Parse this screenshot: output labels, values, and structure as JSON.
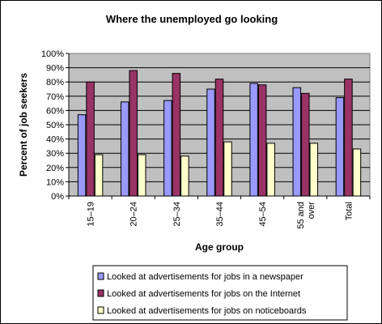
{
  "chart_data": {
    "type": "bar",
    "title": "Where the unemployed go looking",
    "xlabel": "Age group",
    "ylabel": "Percent of job seekers",
    "ylim": [
      0,
      100
    ],
    "yticks": [
      "0%",
      "10%",
      "20%",
      "30%",
      "40%",
      "50%",
      "60%",
      "70%",
      "80%",
      "90%",
      "100%"
    ],
    "grid": true,
    "legend_position": "bottom",
    "categories": [
      "15–19",
      "20–24",
      "25–34",
      "35–44",
      "45–54",
      "55 and over",
      "Total"
    ],
    "category_lines": [
      [
        "15–19"
      ],
      [
        "20–24"
      ],
      [
        "25–34"
      ],
      [
        "35–44"
      ],
      [
        "45–54"
      ],
      [
        "55 and",
        "over"
      ],
      [
        "Total"
      ]
    ],
    "series": [
      {
        "name": "Looked at advertisements for jobs in a newspaper",
        "color": "#9999FF",
        "values": [
          57,
          66,
          67,
          75,
          79,
          76,
          69
        ]
      },
      {
        "name": "Looked at advertisements for jobs on the Internet",
        "color": "#993366",
        "values": [
          80,
          88,
          86,
          82,
          78,
          72,
          82
        ]
      },
      {
        "name": "Looked at advertisements for jobs on noticeboards",
        "color": "#FFFFCC",
        "values": [
          29,
          29,
          28,
          38,
          37,
          37,
          33
        ]
      }
    ],
    "plot_background": "#C0C0C0"
  }
}
